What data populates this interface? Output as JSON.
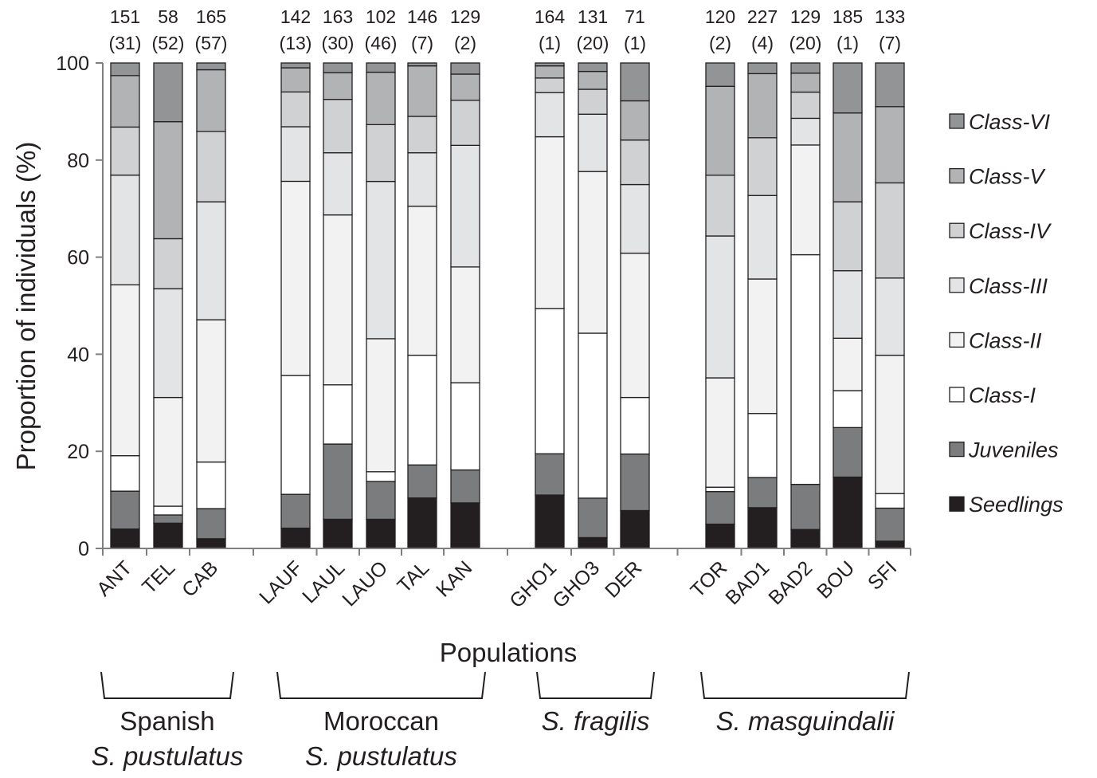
{
  "chart_data": {
    "type": "bar",
    "stacked": true,
    "xlabel": "Populations",
    "ylabel": "Proportion of individuals (%)",
    "ylim": [
      0,
      100
    ],
    "yticks": [
      0,
      20,
      40,
      60,
      80,
      100
    ],
    "grid": false,
    "legend_position": "right",
    "categories": [
      "ANT",
      "TEL",
      "CAB",
      "LAUF",
      "LAUL",
      "LAUO",
      "TAL",
      "KAN",
      "GHO1",
      "GHO3",
      "DER",
      "TOR",
      "BAD1",
      "BAD2",
      "BOU",
      "SFI"
    ],
    "sample_sizes": [
      "151",
      "58",
      "165",
      "142",
      "163",
      "102",
      "146",
      "129",
      "164",
      "131",
      "71",
      "120",
      "227",
      "129",
      "185",
      "133"
    ],
    "sample_extra": [
      "(31)",
      "(52)",
      "(57)",
      "(13)",
      "(30)",
      "(46)",
      "(7)",
      "(2)",
      "(1)",
      "(20)",
      "(1)",
      "(2)",
      "(4)",
      "(20)",
      "(1)",
      "(7)"
    ],
    "series": [
      {
        "name": "Seedlings",
        "color": "#231f20",
        "values": [
          4.0,
          5.2,
          2.0,
          4.2,
          6.0,
          6.0,
          10.4,
          9.4,
          11.0,
          2.3,
          8.5,
          5.0,
          8.4,
          3.9,
          14.7,
          1.5
        ]
      },
      {
        "name": "Juveniles",
        "color": "#7b7c7e",
        "values": [
          7.8,
          1.7,
          6.2,
          7.0,
          15.5,
          7.8,
          6.8,
          6.8,
          8.5,
          8.4,
          12.7,
          6.7,
          6.2,
          9.3,
          10.2,
          6.8
        ]
      },
      {
        "name": "Class-I",
        "color": "#ffffff",
        "values": [
          7.3,
          1.8,
          9.6,
          24.6,
          12.2,
          2.0,
          22.6,
          18.0,
          29.9,
          35.1,
          12.7,
          0.9,
          13.2,
          47.3,
          7.6,
          3.0
        ]
      },
      {
        "name": "Class-II",
        "color": "#f2f2f3",
        "values": [
          35.2,
          22.4,
          29.3,
          40.2,
          35.0,
          27.4,
          30.7,
          23.9,
          35.4,
          34.4,
          32.4,
          22.5,
          27.7,
          22.6,
          10.8,
          28.5
        ]
      },
      {
        "name": "Class-III",
        "color": "#e3e4e5",
        "values": [
          22.6,
          22.4,
          24.3,
          11.3,
          12.8,
          32.4,
          11.0,
          25.1,
          9.1,
          12.2,
          15.4,
          29.2,
          17.2,
          5.5,
          13.9,
          15.9
        ]
      },
      {
        "name": "Class-IV",
        "color": "#d0d1d3",
        "values": [
          9.9,
          10.3,
          14.5,
          7.2,
          11.0,
          11.7,
          7.5,
          9.3,
          3.0,
          5.3,
          10.0,
          12.5,
          11.9,
          5.4,
          14.2,
          19.6
        ]
      },
      {
        "name": "Class-V",
        "color": "#b2b3b5",
        "values": [
          10.6,
          24.1,
          12.7,
          5.0,
          5.5,
          10.8,
          10.4,
          5.4,
          2.5,
          3.8,
          8.8,
          18.3,
          13.2,
          3.9,
          18.3,
          15.7
        ]
      },
      {
        "name": "Class-VI",
        "color": "#939496",
        "values": [
          2.6,
          12.1,
          1.4,
          1.0,
          2.0,
          1.9,
          0.6,
          2.3,
          0.6,
          1.8,
          8.5,
          4.8,
          2.2,
          2.1,
          10.3,
          9.0
        ]
      }
    ],
    "legend": [
      "Class-VI",
      "Class-V",
      "Class-IV",
      "Class-III",
      "Class-II",
      "Class-I",
      "Juveniles",
      "Seedlings"
    ]
  },
  "groups": [
    {
      "line1": "Spanish",
      "line2": "S. pustulatus",
      "line1_italic": false
    },
    {
      "line1": "Moroccan",
      "line2": "S. pustulatus",
      "line1_italic": false
    },
    {
      "line1": "S. fragilis",
      "line2": "",
      "line1_italic": true
    },
    {
      "line1": "S. masguindalii",
      "line2": "",
      "line1_italic": true
    }
  ],
  "colors": {
    "axis": "#7f7f7f",
    "bar_stroke": "#231f20",
    "text": "#231f20"
  }
}
